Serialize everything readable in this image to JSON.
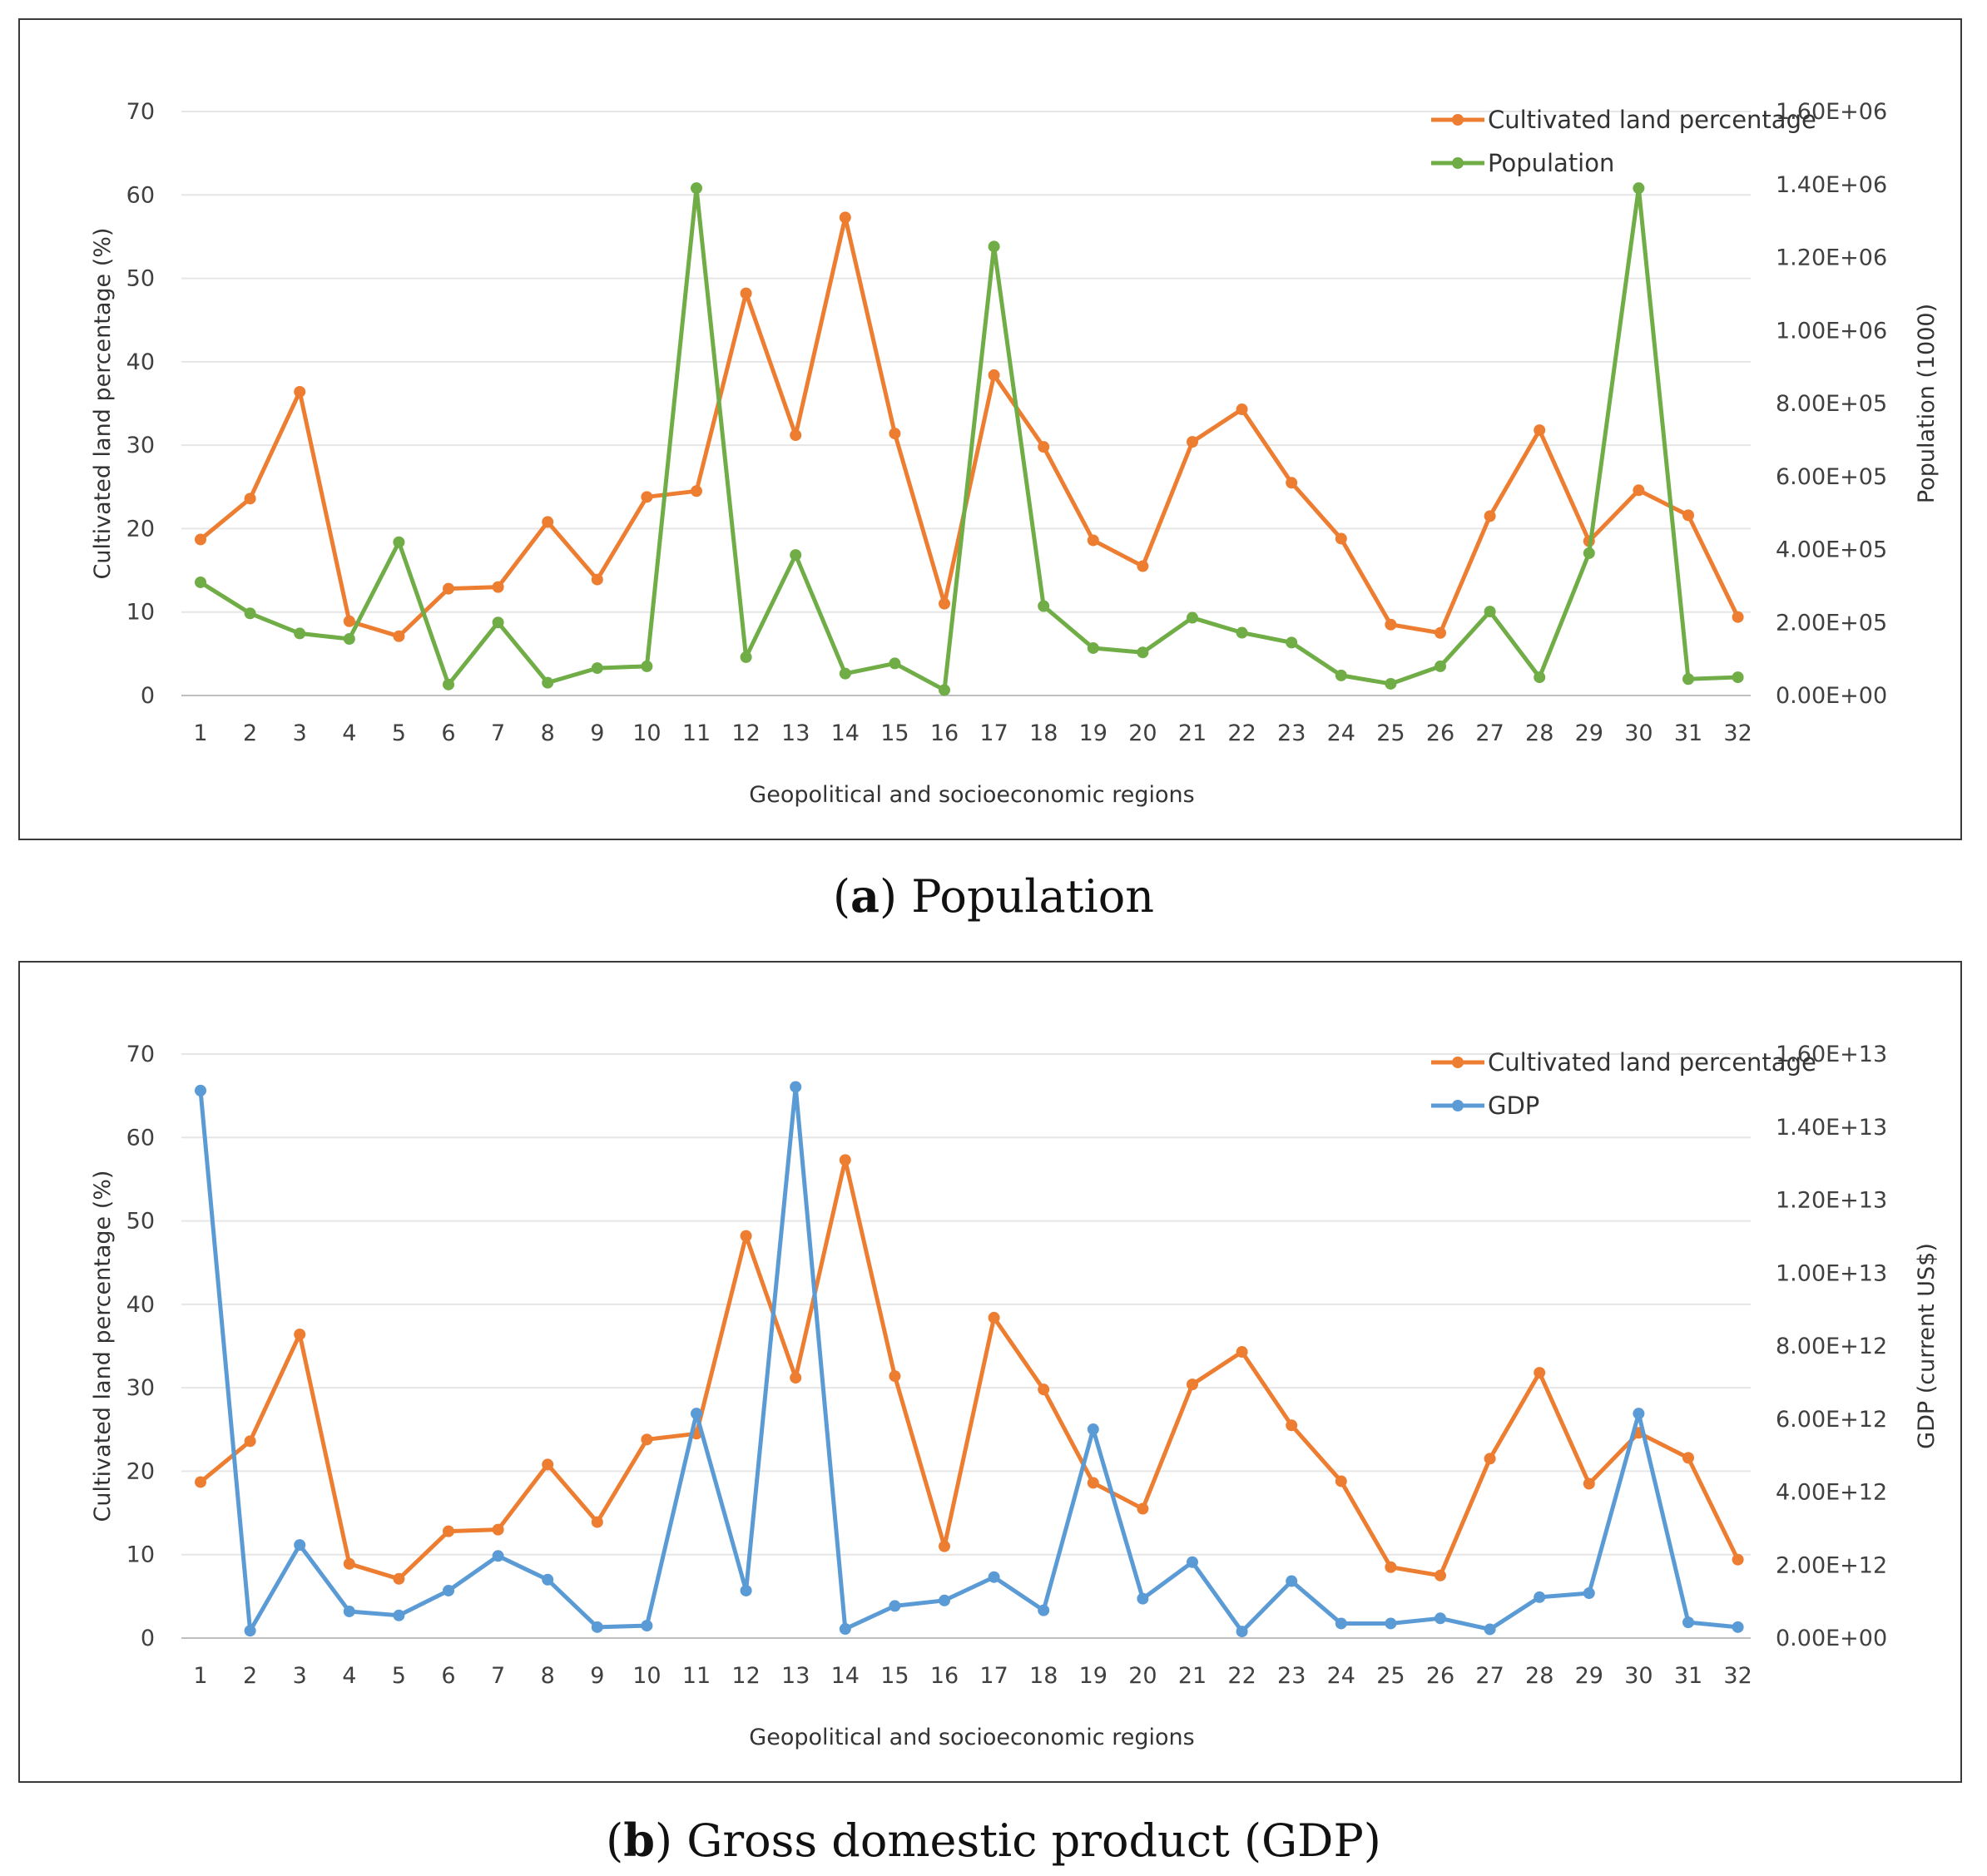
{
  "chart_data": [
    {
      "type": "line",
      "caption_letter": "a",
      "caption_text": "Population",
      "xlabel": "Geopolitical and socioeconomic regions",
      "ylabel": "Cultivated land percentage (%)",
      "y2label": "Population (1000)",
      "ylim": [
        0,
        70
      ],
      "yticks": [
        "0",
        "10",
        "20",
        "30",
        "40",
        "50",
        "60",
        "70"
      ],
      "y2lim": [
        0,
        1600000
      ],
      "y2ticks": [
        "0.00E+00",
        "2.00E+05",
        "4.00E+05",
        "6.00E+05",
        "8.00E+05",
        "1.00E+06",
        "1.20E+06",
        "1.40E+06",
        "1.60E+06"
      ],
      "grid": true,
      "legend_position": "top-right",
      "categories": [
        "1",
        "2",
        "3",
        "4",
        "5",
        "6",
        "7",
        "8",
        "9",
        "10",
        "11",
        "12",
        "13",
        "14",
        "15",
        "16",
        "17",
        "18",
        "19",
        "20",
        "21",
        "22",
        "23",
        "24",
        "25",
        "26",
        "27",
        "28",
        "29",
        "30",
        "31",
        "32"
      ],
      "series": [
        {
          "name": "Cultivated land percentage",
          "axis": "left",
          "color": "#ed7d31",
          "values": [
            18.7,
            23.6,
            36.4,
            8.9,
            7.1,
            12.8,
            13.0,
            20.8,
            13.9,
            23.8,
            24.5,
            48.2,
            31.2,
            57.3,
            31.4,
            11.0,
            38.4,
            29.8,
            18.6,
            15.5,
            30.4,
            34.3,
            25.5,
            18.8,
            8.5,
            7.5,
            21.5,
            31.8,
            18.5,
            24.6,
            21.6,
            9.4
          ]
        },
        {
          "name": "Population",
          "axis": "right",
          "color": "#70ad47",
          "values": [
            310000,
            225000,
            170000,
            155000,
            420000,
            30000,
            200000,
            35000,
            75000,
            80000,
            1390000,
            105000,
            385000,
            60000,
            88000,
            15000,
            1230000,
            245000,
            130000,
            118000,
            213000,
            172000,
            145000,
            55000,
            32000,
            80000,
            230000,
            50000,
            390000,
            1390000,
            45000,
            50000
          ]
        }
      ]
    },
    {
      "type": "line",
      "caption_letter": "b",
      "caption_text": "Gross domestic product (GDP)",
      "xlabel": "Geopolitical and socioeconomic regions",
      "ylabel": "Cultivated land percentage (%)",
      "y2label": "GDP (current US$)",
      "ylim": [
        0,
        70
      ],
      "yticks": [
        "0",
        "10",
        "20",
        "30",
        "40",
        "50",
        "60",
        "70"
      ],
      "y2lim": [
        0,
        16000000000000
      ],
      "y2ticks": [
        "0.00E+00",
        "2.00E+12",
        "4.00E+12",
        "6.00E+12",
        "8.00E+12",
        "1.00E+13",
        "1.20E+13",
        "1.40E+13",
        "1.60E+13"
      ],
      "grid": true,
      "legend_position": "top-right",
      "categories": [
        "1",
        "2",
        "3",
        "4",
        "5",
        "6",
        "7",
        "8",
        "9",
        "10",
        "11",
        "12",
        "13",
        "14",
        "15",
        "16",
        "17",
        "18",
        "19",
        "20",
        "21",
        "22",
        "23",
        "24",
        "25",
        "26",
        "27",
        "28",
        "29",
        "30",
        "31",
        "32"
      ],
      "series": [
        {
          "name": "Cultivated land percentage",
          "axis": "left",
          "color": "#ed7d31",
          "values": [
            18.7,
            23.6,
            36.4,
            8.9,
            7.1,
            12.8,
            13.0,
            20.8,
            13.9,
            23.8,
            24.5,
            48.2,
            31.2,
            57.3,
            31.4,
            11.0,
            38.4,
            29.8,
            18.6,
            15.5,
            30.4,
            34.3,
            25.5,
            18.8,
            8.5,
            7.5,
            21.5,
            31.8,
            18.5,
            24.6,
            21.6,
            9.4
          ]
        },
        {
          "name": "GDP",
          "axis": "right",
          "color": "#5b9bd5",
          "values": [
            15000000000000,
            200000000000,
            2550000000000,
            730000000000,
            620000000000,
            1300000000000,
            2250000000000,
            1600000000000,
            300000000000,
            340000000000,
            6150000000000,
            1300000000000,
            15100000000000,
            250000000000,
            880000000000,
            1030000000000,
            1670000000000,
            760000000000,
            5720000000000,
            1080000000000,
            2080000000000,
            180000000000,
            1560000000000,
            400000000000,
            400000000000,
            540000000000,
            240000000000,
            1120000000000,
            1230000000000,
            6150000000000,
            430000000000,
            300000000000
          ]
        }
      ]
    }
  ]
}
